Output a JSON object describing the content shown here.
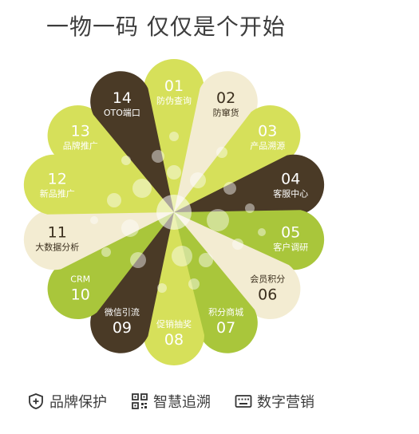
{
  "title": "一物一码 仅仅是个开始",
  "colors": {
    "cream": "#f3ecd2",
    "yellow_green": "#d6e05a",
    "mid_green": "#a9c63b",
    "dark": "#4a3a26",
    "text_dark": "#3b2f1e"
  },
  "petals": [
    {
      "num": "01",
      "label": "防伪查询",
      "color": "yellow_green"
    },
    {
      "num": "02",
      "label": "防窜货",
      "color": "cream"
    },
    {
      "num": "03",
      "label": "产品溯源",
      "color": "yellow_green"
    },
    {
      "num": "04",
      "label": "客服中心",
      "color": "dark"
    },
    {
      "num": "05",
      "label": "客户调研",
      "color": "mid_green"
    },
    {
      "num": "06",
      "label": "会员积分",
      "color": "cream"
    },
    {
      "num": "07",
      "label": "积分商城",
      "color": "mid_green"
    },
    {
      "num": "08",
      "label": "促销抽奖",
      "color": "yellow_green"
    },
    {
      "num": "09",
      "label": "微信引流",
      "color": "dark"
    },
    {
      "num": "10",
      "label": "CRM",
      "color": "mid_green"
    },
    {
      "num": "11",
      "label": "大数据分析",
      "color": "cream"
    },
    {
      "num": "12",
      "label": "新品推广",
      "color": "yellow_green"
    },
    {
      "num": "13",
      "label": "品牌推广",
      "color": "yellow_green"
    },
    {
      "num": "14",
      "label": "OTO端口",
      "color": "dark"
    }
  ],
  "features": [
    {
      "label": "品牌保护",
      "icon": "shield-plus-icon"
    },
    {
      "label": "智慧追溯",
      "icon": "qr-code-icon"
    },
    {
      "label": "数字营销",
      "icon": "keyboard-icon"
    }
  ]
}
